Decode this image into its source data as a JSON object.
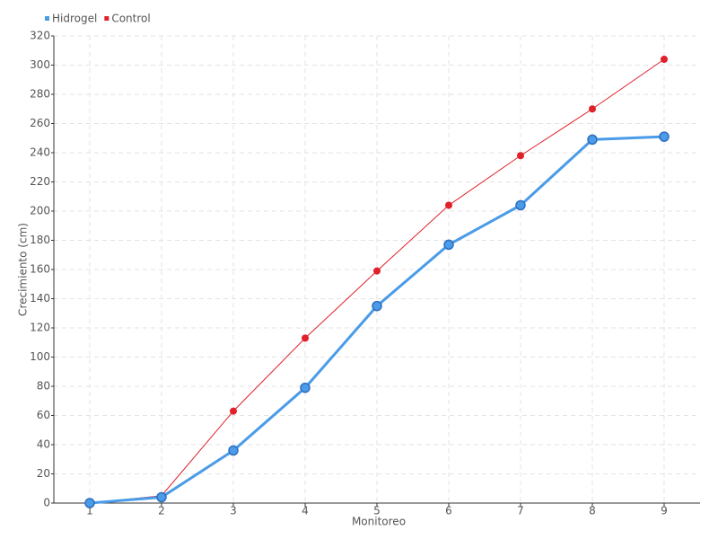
{
  "chart_data": {
    "type": "line",
    "x_label": "Monitoreo",
    "y_label": "Crecimiento (cm)",
    "categories": [
      "1",
      "2",
      "3",
      "4",
      "5",
      "6",
      "7",
      "8",
      "9"
    ],
    "series": [
      {
        "name": "Hidrogel",
        "color": "#4a9be8",
        "values": [
          0,
          4,
          36,
          79,
          135,
          177,
          204,
          249,
          251
        ]
      },
      {
        "name": "Control",
        "color": "#e0202a",
        "values": [
          0,
          5,
          63,
          113,
          159,
          204,
          238,
          270,
          304
        ]
      }
    ],
    "ylim": [
      0,
      320
    ],
    "yticks": [
      0,
      20,
      40,
      60,
      80,
      100,
      120,
      140,
      160,
      180,
      200,
      220,
      240,
      260,
      280,
      300,
      320
    ],
    "grid": true,
    "legend": "top-left"
  }
}
